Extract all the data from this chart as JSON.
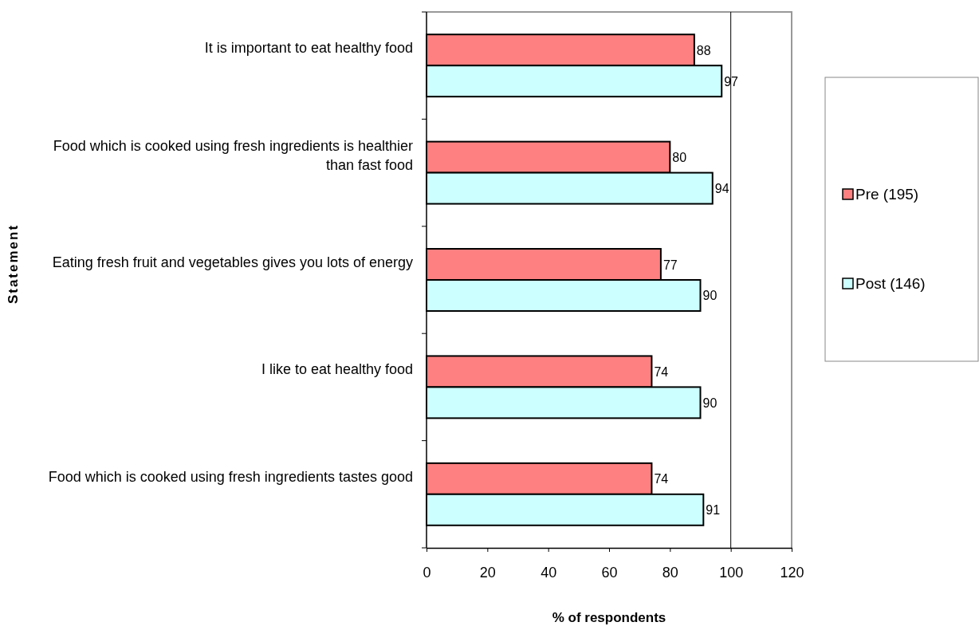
{
  "chart_data": {
    "type": "bar",
    "orientation": "horizontal",
    "xlabel": "% of respondents",
    "ylabel": "Statement",
    "categories": [
      "It is important to eat healthy food",
      "Food which is cooked using fresh ingredients is healthier than fast food",
      "Eating fresh fruit and vegetables gives you lots of energy",
      "I like to eat healthy food",
      "Food which is cooked using fresh ingredients tastes good"
    ],
    "series": [
      {
        "name": "Pre (195)",
        "color": "#ff8080",
        "values": [
          88,
          80,
          77,
          74,
          74
        ]
      },
      {
        "name": "Post (146)",
        "color": "#ccffff",
        "values": [
          97,
          94,
          90,
          90,
          91
        ]
      }
    ],
    "xlim": [
      0,
      120
    ],
    "xticks": [
      0,
      20,
      40,
      60,
      80,
      100,
      120
    ],
    "ref_lines": [
      {
        "axis": "x",
        "value": 100,
        "color": "#000000"
      }
    ],
    "data_labels": true,
    "legend": "right",
    "grid": false
  }
}
